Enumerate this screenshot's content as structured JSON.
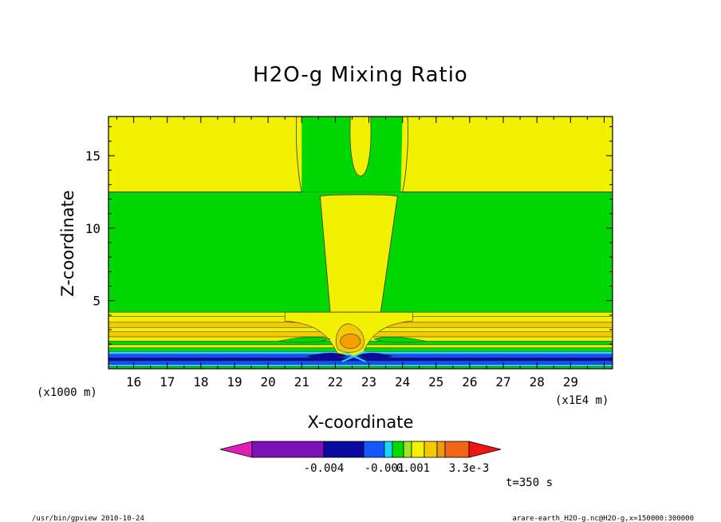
{
  "chart_data": {
    "type": "heatmap",
    "title": "H2O-g Mixing Ratio",
    "xlabel": "X-coordinate",
    "ylabel": "Z-coordinate",
    "x_unit": "(x1E4 m)",
    "y_unit": "(x1000 m)",
    "xlim": [
      15.25,
      30.25
    ],
    "ylim": [
      0.3,
      17.7
    ],
    "x_ticks": [
      "16",
      "17",
      "18",
      "19",
      "20",
      "21",
      "22",
      "23",
      "24",
      "25",
      "26",
      "27",
      "28",
      "29"
    ],
    "x_tick_values": [
      16,
      17,
      18,
      19,
      20,
      21,
      22,
      23,
      24,
      25,
      26,
      27,
      28,
      29
    ],
    "y_ticks": [
      "5",
      "10",
      "15"
    ],
    "y_tick_values": [
      5,
      10,
      15
    ],
    "colorbar": {
      "labels": [
        "-0.004",
        "-0.001",
        "0.001",
        "3.3e-3"
      ],
      "colors": [
        "#e11eb4",
        "#7a12b8",
        "#0a0aa0",
        "#1458ff",
        "#18d8ff",
        "#00dc00",
        "#9ee61e",
        "#f2f200",
        "#f5c800",
        "#f09a14",
        "#f06614",
        "#f01414"
      ]
    },
    "field_colors": {
      "yellow": "#f0f000",
      "green": "#00d700",
      "orange": "#f5a000",
      "blue": "#1450ff",
      "dark_blue": "#0a0aa0",
      "light_blue": "#30d0ff"
    },
    "regions": [
      {
        "name": "upper-yellow-left",
        "x": [
          15.25,
          21.0
        ],
        "z": [
          12.5,
          17.7
        ],
        "value": "yellow"
      },
      {
        "name": "upper-yellow-right",
        "x": [
          24.0,
          30.25
        ],
        "z": [
          12.5,
          17.7
        ],
        "value": "yellow"
      },
      {
        "name": "central-yellow-column",
        "x": [
          21.6,
          23.8
        ],
        "z": [
          2.8,
          12.3
        ],
        "value": "yellow"
      },
      {
        "name": "top-yellow-tongue",
        "x": [
          22.4,
          23.1
        ],
        "z": [
          13.6,
          17.7
        ],
        "value": "yellow"
      },
      {
        "name": "mid-green",
        "x": [
          15.25,
          30.25
        ],
        "z": [
          4.2,
          12.5
        ],
        "value": "green"
      },
      {
        "name": "near-surface-layers",
        "x": [
          15.25,
          30.25
        ],
        "z": [
          0.3,
          4.2
        ],
        "value": "layered"
      },
      {
        "name": "orange-core",
        "x": [
          22.2,
          22.7
        ],
        "z": [
          1.5,
          2.5
        ],
        "value": "orange"
      }
    ],
    "time_label": "t=350 s"
  },
  "footer": {
    "left": "/usr/bin/gpview   2010-10-24",
    "right": "arare-earth_H2O-g.nc@H2O-g,x=150000:300000"
  }
}
